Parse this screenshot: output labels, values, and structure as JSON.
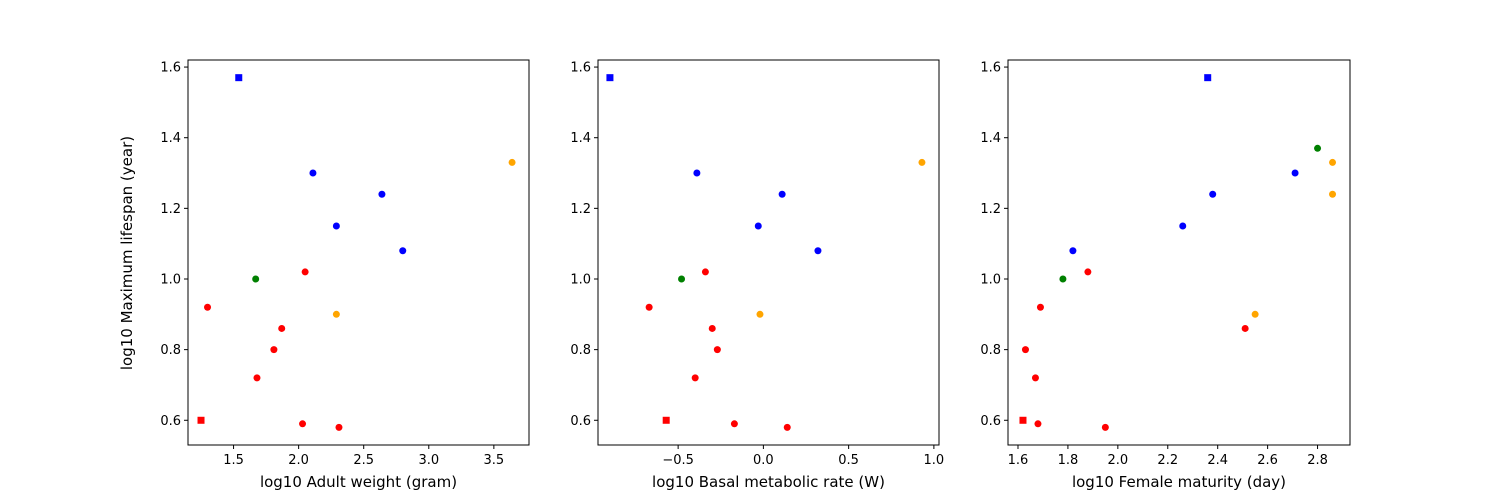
{
  "figure": {
    "ylabel": "log10 Maximum lifespan (year)"
  },
  "colors": {
    "red": "#ff0000",
    "green": "#008000",
    "blue": "#0000ff",
    "orange": "#ffa500"
  },
  "chart_data": [
    {
      "type": "scatter",
      "title": "",
      "xlabel": "log10 Adult weight (gram)",
      "ylabel": "log10 Maximum lifespan (year)",
      "xlim": [
        1.15,
        3.77
      ],
      "ylim": [
        0.53,
        1.62
      ],
      "xticks": [
        1.5,
        2.0,
        2.5,
        3.0,
        3.5
      ],
      "xtick_labels": [
        "1.5",
        "2.0",
        "2.5",
        "3.0",
        "3.5"
      ],
      "yticks": [
        0.6,
        0.8,
        1.0,
        1.2,
        1.4,
        1.6
      ],
      "ytick_labels": [
        "0.6",
        "0.8",
        "1.0",
        "1.2",
        "1.4",
        "1.6"
      ],
      "grid": false,
      "points": [
        {
          "x": 1.54,
          "y": 1.57,
          "color": "blue",
          "marker": "square"
        },
        {
          "x": 2.11,
          "y": 1.3,
          "color": "blue",
          "marker": "circle"
        },
        {
          "x": 2.64,
          "y": 1.24,
          "color": "blue",
          "marker": "circle"
        },
        {
          "x": 2.29,
          "y": 1.15,
          "color": "blue",
          "marker": "circle"
        },
        {
          "x": 2.8,
          "y": 1.08,
          "color": "blue",
          "marker": "circle"
        },
        {
          "x": 3.64,
          "y": 1.33,
          "color": "orange",
          "marker": "circle"
        },
        {
          "x": 2.29,
          "y": 0.9,
          "color": "orange",
          "marker": "circle"
        },
        {
          "x": 1.67,
          "y": 1.0,
          "color": "green",
          "marker": "circle"
        },
        {
          "x": 2.05,
          "y": 1.02,
          "color": "red",
          "marker": "circle"
        },
        {
          "x": 1.3,
          "y": 0.92,
          "color": "red",
          "marker": "circle"
        },
        {
          "x": 1.87,
          "y": 0.86,
          "color": "red",
          "marker": "circle"
        },
        {
          "x": 1.81,
          "y": 0.8,
          "color": "red",
          "marker": "circle"
        },
        {
          "x": 1.68,
          "y": 0.72,
          "color": "red",
          "marker": "circle"
        },
        {
          "x": 1.25,
          "y": 0.6,
          "color": "red",
          "marker": "square"
        },
        {
          "x": 2.03,
          "y": 0.59,
          "color": "red",
          "marker": "circle"
        },
        {
          "x": 2.31,
          "y": 0.58,
          "color": "red",
          "marker": "circle"
        }
      ]
    },
    {
      "type": "scatter",
      "title": "",
      "xlabel": "log10 Basal metabolic rate (W)",
      "ylabel": "",
      "xlim": [
        -0.97,
        1.03
      ],
      "ylim": [
        0.53,
        1.62
      ],
      "xticks": [
        -0.5,
        0.0,
        0.5,
        1.0
      ],
      "xtick_labels": [
        "−0.5",
        "0.0",
        "0.5",
        "1.0"
      ],
      "yticks": [
        0.6,
        0.8,
        1.0,
        1.2,
        1.4,
        1.6
      ],
      "ytick_labels": [
        "0.6",
        "0.8",
        "1.0",
        "1.2",
        "1.4",
        "1.6"
      ],
      "grid": false,
      "points": [
        {
          "x": -0.9,
          "y": 1.57,
          "color": "blue",
          "marker": "square"
        },
        {
          "x": -0.39,
          "y": 1.3,
          "color": "blue",
          "marker": "circle"
        },
        {
          "x": 0.11,
          "y": 1.24,
          "color": "blue",
          "marker": "circle"
        },
        {
          "x": -0.03,
          "y": 1.15,
          "color": "blue",
          "marker": "circle"
        },
        {
          "x": 0.32,
          "y": 1.08,
          "color": "blue",
          "marker": "circle"
        },
        {
          "x": 0.93,
          "y": 1.33,
          "color": "orange",
          "marker": "circle"
        },
        {
          "x": -0.02,
          "y": 0.9,
          "color": "orange",
          "marker": "circle"
        },
        {
          "x": -0.48,
          "y": 1.0,
          "color": "green",
          "marker": "circle"
        },
        {
          "x": -0.34,
          "y": 1.02,
          "color": "red",
          "marker": "circle"
        },
        {
          "x": -0.67,
          "y": 0.92,
          "color": "red",
          "marker": "circle"
        },
        {
          "x": -0.3,
          "y": 0.86,
          "color": "red",
          "marker": "circle"
        },
        {
          "x": -0.27,
          "y": 0.8,
          "color": "red",
          "marker": "circle"
        },
        {
          "x": -0.4,
          "y": 0.72,
          "color": "red",
          "marker": "circle"
        },
        {
          "x": -0.57,
          "y": 0.6,
          "color": "red",
          "marker": "square"
        },
        {
          "x": -0.17,
          "y": 0.59,
          "color": "red",
          "marker": "circle"
        },
        {
          "x": 0.14,
          "y": 0.58,
          "color": "red",
          "marker": "circle"
        }
      ]
    },
    {
      "type": "scatter",
      "title": "",
      "xlabel": "log10 Female maturity (day)",
      "ylabel": "",
      "xlim": [
        1.56,
        2.93
      ],
      "ylim": [
        0.53,
        1.62
      ],
      "xticks": [
        1.6,
        1.8,
        2.0,
        2.2,
        2.4,
        2.6,
        2.8
      ],
      "xtick_labels": [
        "1.6",
        "1.8",
        "2.0",
        "2.2",
        "2.4",
        "2.6",
        "2.8"
      ],
      "yticks": [
        0.6,
        0.8,
        1.0,
        1.2,
        1.4,
        1.6
      ],
      "ytick_labels": [
        "0.6",
        "0.8",
        "1.0",
        "1.2",
        "1.4",
        "1.6"
      ],
      "grid": false,
      "points": [
        {
          "x": 2.36,
          "y": 1.57,
          "color": "blue",
          "marker": "square"
        },
        {
          "x": 2.71,
          "y": 1.3,
          "color": "blue",
          "marker": "circle"
        },
        {
          "x": 2.38,
          "y": 1.24,
          "color": "blue",
          "marker": "circle"
        },
        {
          "x": 2.26,
          "y": 1.15,
          "color": "blue",
          "marker": "circle"
        },
        {
          "x": 1.82,
          "y": 1.08,
          "color": "blue",
          "marker": "circle"
        },
        {
          "x": 2.8,
          "y": 1.37,
          "color": "green",
          "marker": "circle"
        },
        {
          "x": 1.78,
          "y": 1.0,
          "color": "green",
          "marker": "circle"
        },
        {
          "x": 2.86,
          "y": 1.33,
          "color": "orange",
          "marker": "circle"
        },
        {
          "x": 2.86,
          "y": 1.24,
          "color": "orange",
          "marker": "circle"
        },
        {
          "x": 2.55,
          "y": 0.9,
          "color": "orange",
          "marker": "circle"
        },
        {
          "x": 1.88,
          "y": 1.02,
          "color": "red",
          "marker": "circle"
        },
        {
          "x": 1.69,
          "y": 0.92,
          "color": "red",
          "marker": "circle"
        },
        {
          "x": 2.51,
          "y": 0.86,
          "color": "red",
          "marker": "circle"
        },
        {
          "x": 1.63,
          "y": 0.8,
          "color": "red",
          "marker": "circle"
        },
        {
          "x": 1.67,
          "y": 0.72,
          "color": "red",
          "marker": "circle"
        },
        {
          "x": 1.62,
          "y": 0.6,
          "color": "red",
          "marker": "square"
        },
        {
          "x": 1.68,
          "y": 0.59,
          "color": "red",
          "marker": "circle"
        },
        {
          "x": 1.95,
          "y": 0.58,
          "color": "red",
          "marker": "circle"
        }
      ]
    }
  ]
}
